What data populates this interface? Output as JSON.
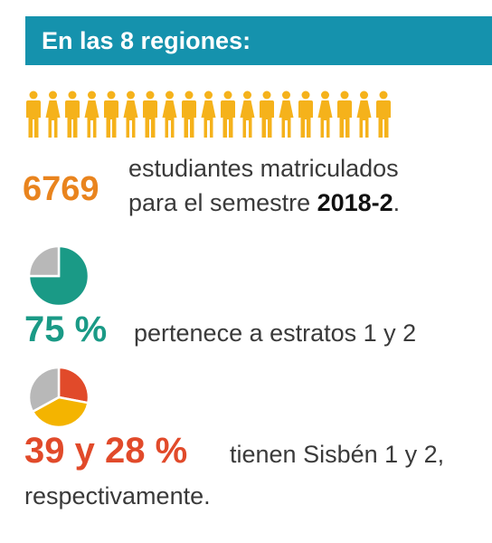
{
  "banner": {
    "title": "En las 8 regiones:",
    "color": "#1592ad"
  },
  "people_icon": {
    "name": "person-icon",
    "count": 19,
    "color": "#f5b21b"
  },
  "students": {
    "number": "6769",
    "line1": "estudiantes matriculados",
    "line2_prefix": "para el semestre ",
    "line2_bold": "2018-2",
    "line2_suffix": ".",
    "number_color": "#e9841e"
  },
  "strata": {
    "percent_label": "75 %",
    "text": "pertenece a estratos 1 y 2",
    "percent_value": 75,
    "colors": {
      "highlight": "#1a9a86",
      "rest": "#b8b8b8"
    }
  },
  "sisben": {
    "percent_label": "39 y 28 %",
    "text_line1": "tienen Sisbén 1 y 2,",
    "text_line2": "respectivamente.",
    "slices": [
      {
        "value": 28,
        "color": "#e14a2a"
      },
      {
        "value": 39,
        "color": "#f4b400"
      },
      {
        "value": 33,
        "color": "#b8b8b8"
      }
    ]
  }
}
